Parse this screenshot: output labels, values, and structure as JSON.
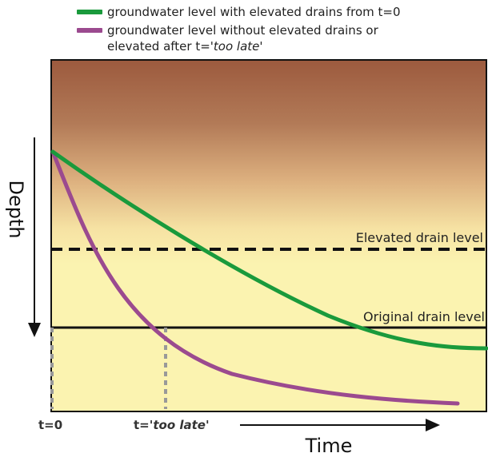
{
  "legend": {
    "green_label": "groundwater level with elevated drains from t=0",
    "purple_label_line1": "groundwater level without elevated drains or",
    "purple_label_line2_prefix": "elevated after t=",
    "purple_label_line2_em": "'too late'"
  },
  "labels": {
    "elevated_drain": "Elevated drain level",
    "original_drain": "Original drain level",
    "depth_axis": "Depth",
    "time_axis": "Time",
    "t0": "t=0",
    "too_late_prefix": "t=",
    "too_late_em": "'too late'"
  },
  "colors": {
    "green_curve": "#1a9a3c",
    "purple_curve": "#9b4a8f",
    "soil_top": "#9c5a3e",
    "soil_mid": "#f2d49a",
    "water_zone": "#fbf3b0",
    "frame": "#111111",
    "dotted": "#999999"
  }
}
